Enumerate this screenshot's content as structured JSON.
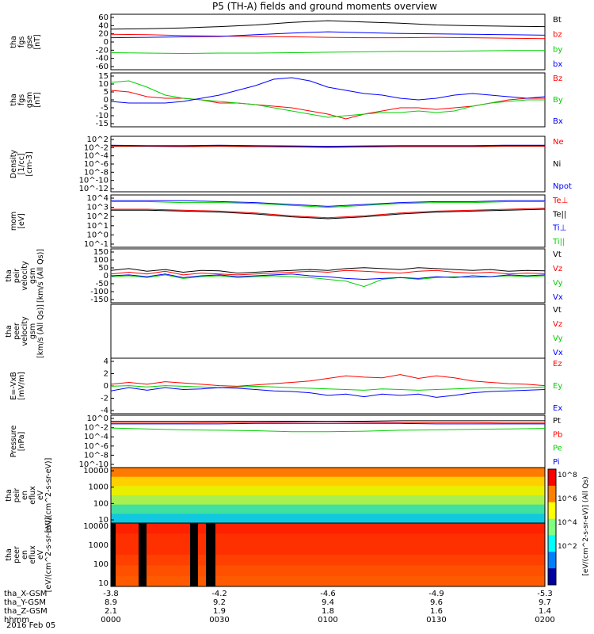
{
  "title": "P5 (TH-A) fields and ground moments overview",
  "date_label": "2016 Feb 05",
  "colorbar_label": "[eV/(cm^2-s-sr-eV)] (All Qs)",
  "colorbar_ticks": [
    "10^8",
    "10^6",
    "10^4",
    "10^2"
  ],
  "colors": {
    "black": "#000000",
    "red": "#ff0000",
    "green": "#00d000",
    "blue": "#0000ff"
  },
  "chart_data": [
    {
      "type": "line",
      "ylabel": [
        "tha",
        "fgs",
        "gse",
        "[nT]"
      ],
      "yticks": [
        "60",
        "40",
        "20",
        "0",
        "-20",
        "-40",
        "-60"
      ],
      "ylim": [
        -65,
        65
      ],
      "x": [
        0,
        10,
        20,
        30,
        40,
        50,
        60,
        70,
        80,
        90,
        100,
        110,
        120
      ],
      "series": [
        {
          "name": "Bt",
          "color": "#000000",
          "values": [
            30,
            31,
            33,
            36,
            40,
            46,
            50,
            47,
            44,
            40,
            38,
            37,
            36
          ]
        },
        {
          "name": "bz",
          "color": "#ff0000",
          "values": [
            18,
            17,
            15,
            14,
            13,
            12,
            11,
            10,
            10,
            11,
            10,
            9,
            8
          ]
        },
        {
          "name": "by",
          "color": "#00d000",
          "values": [
            -25,
            -26,
            -27,
            -26,
            -26,
            -25,
            -24,
            -23,
            -22,
            -22,
            -21,
            -20,
            -20
          ]
        },
        {
          "name": "bx",
          "color": "#0000ff",
          "values": [
            10,
            11,
            12,
            13,
            17,
            21,
            24,
            22,
            20,
            19,
            18,
            17,
            16
          ]
        }
      ]
    },
    {
      "type": "line",
      "ylabel": [
        "tha",
        "fgs",
        "gsm",
        "[nT]"
      ],
      "yticks": [
        "15",
        "10",
        "5",
        "0",
        "-5",
        "-10",
        "-15"
      ],
      "ylim": [
        -18,
        16
      ],
      "x": [
        0,
        5,
        10,
        15,
        20,
        25,
        30,
        35,
        40,
        45,
        50,
        55,
        60,
        65,
        70,
        75,
        80,
        85,
        90,
        95,
        100,
        105,
        110,
        115,
        120
      ],
      "series": [
        {
          "name": "Bz",
          "color": "#ff0000",
          "values": [
            5,
            4,
            1,
            0,
            0,
            -1,
            -3,
            -3,
            -4,
            -5,
            -6,
            -8,
            -10,
            -13,
            -10,
            -8,
            -6,
            -6,
            -7,
            -6,
            -5,
            -3,
            -1,
            0,
            0
          ]
        },
        {
          "name": "By",
          "color": "#00d000",
          "values": [
            10,
            11,
            7,
            2,
            0,
            -1,
            -2,
            -3,
            -4,
            -6,
            -8,
            -10,
            -12,
            -11,
            -10,
            -9,
            -9,
            -8,
            -9,
            -8,
            -5,
            -3,
            -2,
            -1,
            -1
          ]
        },
        {
          "name": "Bx",
          "color": "#0000ff",
          "values": [
            -2,
            -3,
            -3,
            -3,
            -2,
            0,
            2,
            5,
            8,
            12,
            13,
            11,
            7,
            5,
            3,
            2,
            0,
            -1,
            0,
            2,
            3,
            2,
            1,
            0,
            1
          ]
        }
      ]
    },
    {
      "type": "line",
      "ylabel": [
        "Density",
        "[1/cc]",
        "[cm-3]"
      ],
      "yticks": [
        "10^2",
        "10^-2",
        "10^-4",
        "10^-6",
        "10^-8",
        "10^-10",
        "10^-12"
      ],
      "ylim": [
        -12.5,
        2.5
      ],
      "x": [
        0,
        10,
        20,
        30,
        40,
        50,
        60,
        70,
        80,
        90,
        100,
        110,
        120
      ],
      "series": [
        {
          "name": "Ne",
          "color": "#ff0000",
          "values": [
            -0.2,
            -0.2,
            -0.3,
            -0.2,
            -0.3,
            -0.4,
            -0.5,
            -0.4,
            -0.3,
            -0.3,
            -0.3,
            -0.2,
            -0.2
          ]
        },
        {
          "name": "Ni",
          "color": "#000000",
          "values": [
            0.0,
            -0.1,
            -0.1,
            0.0,
            -0.1,
            -0.2,
            -0.3,
            -0.2,
            -0.1,
            -0.1,
            -0.1,
            0.0,
            0.0
          ]
        },
        {
          "name": "Npot",
          "color": "#0000ff",
          "values": [
            0.1,
            0.0,
            0.0,
            0.1,
            0.0,
            -0.1,
            -0.2,
            -0.1,
            0.0,
            0.0,
            0.0,
            0.1,
            0.1
          ]
        }
      ]
    },
    {
      "type": "line",
      "ylabel": [
        "mom",
        "[eV]"
      ],
      "yticks": [
        "10^4",
        "10^3",
        "10^2",
        "10^1",
        "10^0",
        "10^-1"
      ],
      "ylim": [
        -1.3,
        4.2
      ],
      "x": [
        0,
        10,
        20,
        30,
        40,
        50,
        60,
        70,
        80,
        90,
        100,
        110,
        120
      ],
      "series": [
        {
          "name": "Te⊥",
          "color": "#ff0000",
          "values": [
            2.7,
            2.7,
            2.6,
            2.5,
            2.3,
            2.0,
            1.8,
            2.0,
            2.3,
            2.5,
            2.6,
            2.7,
            2.8
          ]
        },
        {
          "name": "Te||",
          "color": "#000000",
          "values": [
            2.6,
            2.6,
            2.5,
            2.4,
            2.2,
            1.9,
            1.7,
            1.9,
            2.2,
            2.4,
            2.5,
            2.6,
            2.7
          ]
        },
        {
          "name": "Ti⊥",
          "color": "#0000ff",
          "values": [
            3.6,
            3.6,
            3.6,
            3.5,
            3.4,
            3.2,
            3.0,
            3.2,
            3.4,
            3.5,
            3.5,
            3.6,
            3.6
          ]
        },
        {
          "name": "Ti||",
          "color": "#00d000",
          "values": [
            3.5,
            3.5,
            3.4,
            3.4,
            3.3,
            3.1,
            2.9,
            3.1,
            3.3,
            3.4,
            3.4,
            3.5,
            3.5
          ]
        }
      ]
    },
    {
      "type": "line",
      "ylabel": [
        "tha",
        "peir",
        "velocity",
        "gsm",
        "[km/s (All Qs)]"
      ],
      "yticks": [
        "150",
        "100",
        "50",
        "0",
        "-50",
        "-100",
        "-150"
      ],
      "ylim": [
        -150,
        150
      ],
      "x": [
        0,
        5,
        10,
        15,
        20,
        25,
        30,
        35,
        40,
        45,
        50,
        55,
        60,
        65,
        70,
        75,
        80,
        85,
        90,
        95,
        100,
        105,
        110,
        115,
        120
      ],
      "series": [
        {
          "name": "Vt",
          "color": "#000000",
          "values": [
            30,
            40,
            25,
            35,
            20,
            30,
            28,
            15,
            20,
            25,
            30,
            35,
            30,
            40,
            45,
            40,
            35,
            45,
            40,
            35,
            30,
            35,
            25,
            30,
            28
          ]
        },
        {
          "name": "Vz",
          "color": "#ff0000",
          "values": [
            10,
            20,
            10,
            25,
            5,
            15,
            10,
            5,
            10,
            15,
            20,
            25,
            20,
            30,
            25,
            20,
            15,
            25,
            30,
            20,
            15,
            20,
            10,
            15,
            12
          ]
        },
        {
          "name": "Vy",
          "color": "#00d000",
          "values": [
            -5,
            0,
            -10,
            5,
            -15,
            -5,
            0,
            -10,
            -5,
            0,
            -5,
            -10,
            -20,
            -30,
            -60,
            -20,
            -10,
            -20,
            -10,
            -5,
            -10,
            -5,
            0,
            -5,
            0
          ]
        },
        {
          "name": "Vx",
          "color": "#0000ff",
          "values": [
            0,
            5,
            -5,
            10,
            -10,
            0,
            5,
            -5,
            0,
            5,
            10,
            0,
            -5,
            -15,
            -20,
            -15,
            -10,
            -15,
            -5,
            -10,
            0,
            -5,
            5,
            0,
            5
          ]
        }
      ]
    },
    {
      "type": "line",
      "ylabel": [
        "tha",
        "peer",
        "velocity",
        "gsm",
        "[km/s (All Qs)]"
      ],
      "yticks": [],
      "ylim": [
        -150,
        150
      ],
      "legend": [
        "Vt",
        "Vz",
        "Vy",
        "Vx"
      ],
      "series": []
    },
    {
      "type": "line",
      "ylabel": [
        "E=-VxB",
        "[mV/m]"
      ],
      "yticks": [
        "4",
        "2",
        "0",
        "-2",
        "-4"
      ],
      "ylim": [
        -4,
        4.5
      ],
      "x": [
        0,
        5,
        10,
        15,
        20,
        25,
        30,
        35,
        40,
        45,
        50,
        55,
        60,
        65,
        70,
        75,
        80,
        85,
        90,
        95,
        100,
        105,
        110,
        115,
        120
      ],
      "series": [
        {
          "name": "Ez",
          "color": "#ff0000",
          "values": [
            0.5,
            0.8,
            0.5,
            0.9,
            0.7,
            0.5,
            0.3,
            0.2,
            0.4,
            0.6,
            0.8,
            1.0,
            1.4,
            1.8,
            1.6,
            1.5,
            2.0,
            1.4,
            1.8,
            1.5,
            1.0,
            0.8,
            0.6,
            0.5,
            0.3
          ]
        },
        {
          "name": "Ey",
          "color": "#00d000",
          "values": [
            0.2,
            0.3,
            0.1,
            0.3,
            0.2,
            0.1,
            0.0,
            0.1,
            0.2,
            0.1,
            0.0,
            -0.1,
            -0.2,
            -0.3,
            -0.4,
            -0.2,
            -0.3,
            -0.4,
            -0.3,
            -0.2,
            -0.1,
            0.0,
            -0.1,
            0.0,
            0.1
          ]
        },
        {
          "name": "Ex",
          "color": "#0000ff",
          "values": [
            -0.5,
            0.0,
            -0.4,
            0.0,
            -0.3,
            -0.2,
            0.0,
            -0.1,
            -0.3,
            -0.5,
            -0.6,
            -0.8,
            -1.2,
            -1.0,
            -1.4,
            -1.0,
            -1.2,
            -1.0,
            -1.5,
            -1.2,
            -0.8,
            -0.6,
            -0.5,
            -0.4,
            -0.3
          ]
        }
      ]
    },
    {
      "type": "line",
      "ylabel": [
        "Pressure",
        "[nPa]"
      ],
      "yticks": [
        "10^0",
        "10^-2",
        "10^-4",
        "10^-6",
        "10^-8",
        "10^-10"
      ],
      "ylim": [
        -10.5,
        1.0
      ],
      "x": [
        0,
        10,
        20,
        30,
        40,
        50,
        60,
        70,
        80,
        90,
        100,
        110,
        120
      ],
      "series": [
        {
          "name": "Pt",
          "color": "#000000",
          "values": [
            -0.3,
            -0.3,
            -0.3,
            -0.3,
            -0.3,
            -0.3,
            -0.3,
            -0.3,
            -0.2,
            -0.2,
            -0.2,
            -0.2,
            -0.2
          ]
        },
        {
          "name": "Pb",
          "color": "#ff0000",
          "values": [
            -0.7,
            -0.7,
            -0.7,
            -0.6,
            -0.6,
            -0.5,
            -0.4,
            -0.5,
            -0.6,
            -0.6,
            -0.6,
            -0.7,
            -0.7
          ]
        },
        {
          "name": "Pe",
          "color": "#00d000",
          "values": [
            -1.8,
            -2.0,
            -2.2,
            -2.3,
            -2.4,
            -2.6,
            -2.6,
            -2.5,
            -2.3,
            -2.2,
            -2.1,
            -2.0,
            -1.9
          ]
        },
        {
          "name": "Pi",
          "color": "#0000ff",
          "values": [
            -0.9,
            -0.9,
            -0.9,
            -0.9,
            -0.8,
            -0.8,
            -0.8,
            -0.8,
            -0.8,
            -0.9,
            -0.9,
            -0.9,
            -0.9
          ]
        }
      ]
    },
    {
      "type": "heatmap",
      "ylabel": [
        "tha",
        "peir",
        "en",
        "eflux",
        "eV",
        "[eV/(cm^2-s-sr-eV)]"
      ],
      "yticks": [
        "10000",
        "1000",
        "100",
        "10"
      ]
    },
    {
      "type": "heatmap",
      "ylabel": [
        "tha",
        "peer",
        "en",
        "eflux",
        "eV",
        "[eV/(cm^2-s-sr-eV)]"
      ],
      "yticks": [
        "10000",
        "1000",
        "100",
        "10"
      ]
    }
  ],
  "x_axis": {
    "rows": [
      {
        "label": "tha_X-GSM",
        "values": [
          "-3.8",
          "-4.2",
          "-4.6",
          "-4.9",
          "-5.3"
        ]
      },
      {
        "label": "tha_Y-GSM",
        "values": [
          "8.9",
          "9.2",
          "9.4",
          "9.6",
          "9.7"
        ]
      },
      {
        "label": "tha_Z-GSM",
        "values": [
          "2.1",
          "1.9",
          "1.8",
          "1.6",
          "1.4"
        ]
      },
      {
        "label": "hhmm",
        "values": [
          "0000",
          "0030",
          "0100",
          "0130",
          "0200"
        ]
      }
    ]
  }
}
